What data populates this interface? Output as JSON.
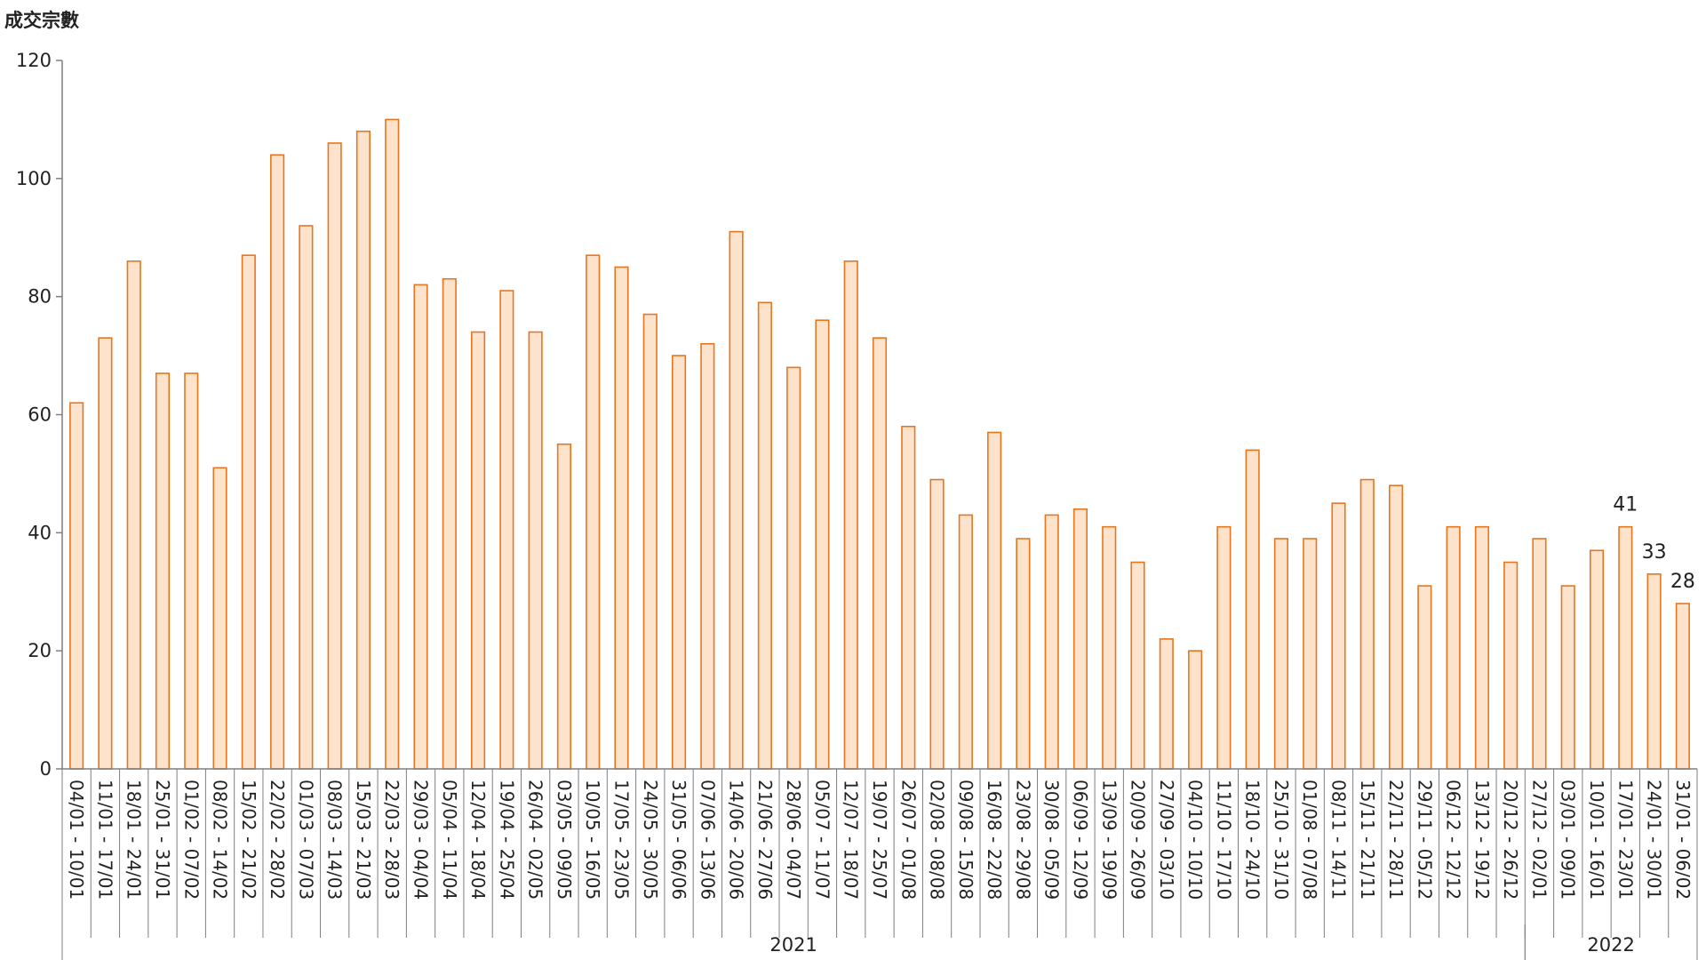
{
  "colors": {
    "bar_fill": "#fde3cc",
    "bar_stroke": "#e8761e",
    "axis": "#7f7f7f",
    "text": "#222222"
  },
  "chart_data": {
    "type": "bar",
    "title": "",
    "xlabel": "",
    "ylabel": "成交宗數",
    "ylim": [
      0,
      120
    ],
    "yticks": [
      0,
      20,
      40,
      60,
      80,
      100,
      120
    ],
    "grid": false,
    "categories": [
      "04/01 - 10/01",
      "11/01 - 17/01",
      "18/01 - 24/01",
      "25/01 - 31/01",
      "01/02 - 07/02",
      "08/02 - 14/02",
      "15/02 - 21/02",
      "22/02 - 28/02",
      "01/03 - 07/03",
      "08/03 - 14/03",
      "15/03 - 21/03",
      "22/03 - 28/03",
      "29/03 - 04/04",
      "05/04 - 11/04",
      "12/04 - 18/04",
      "19/04 - 25/04",
      "26/04 - 02/05",
      "03/05 - 09/05",
      "10/05 - 16/05",
      "17/05 - 23/05",
      "24/05 - 30/05",
      "31/05 - 06/06",
      "07/06 - 13/06",
      "14/06 - 20/06",
      "21/06 - 27/06",
      "28/06 - 04/07",
      "05/07 - 11/07",
      "12/07 - 18/07",
      "19/07 - 25/07",
      "26/07 - 01/08",
      "02/08 - 08/08",
      "09/08 - 15/08",
      "16/08 - 22/08",
      "23/08 - 29/08",
      "30/08 - 05/09",
      "06/09 - 12/09",
      "13/09 - 19/09",
      "20/09 - 26/09",
      "27/09 - 03/10",
      "04/10 - 10/10",
      "11/10 - 17/10",
      "18/10 - 24/10",
      "25/10 - 31/10",
      "01/08 - 07/08",
      "08/11 - 14/11",
      "15/11 - 21/11",
      "22/11 - 28/11",
      "29/11 - 05/12",
      "06/12 - 12/12",
      "13/12 - 19/12",
      "20/12 - 26/12",
      "27/12 - 02/01",
      "03/01 - 09/01",
      "10/01 - 16/01",
      "17/01 - 23/01",
      "24/01 - 30/01",
      "31/01 - 06/02"
    ],
    "values": [
      62,
      73,
      86,
      67,
      67,
      51,
      87,
      104,
      92,
      106,
      108,
      110,
      82,
      83,
      74,
      81,
      74,
      55,
      87,
      85,
      77,
      70,
      72,
      91,
      79,
      68,
      76,
      86,
      73,
      58,
      49,
      43,
      57,
      39,
      43,
      44,
      41,
      35,
      22,
      20,
      41,
      54,
      39,
      39,
      45,
      49,
      48,
      31,
      41,
      41,
      35,
      39,
      31,
      37,
      41,
      33,
      28
    ],
    "data_labels": [
      {
        "index": 54,
        "text": "41"
      },
      {
        "index": 55,
        "text": "33"
      },
      {
        "index": 56,
        "text": "28"
      }
    ],
    "year_groups": [
      {
        "label": "2021",
        "start": 0,
        "end": 50
      },
      {
        "label": "2022",
        "start": 51,
        "end": 56
      }
    ]
  }
}
